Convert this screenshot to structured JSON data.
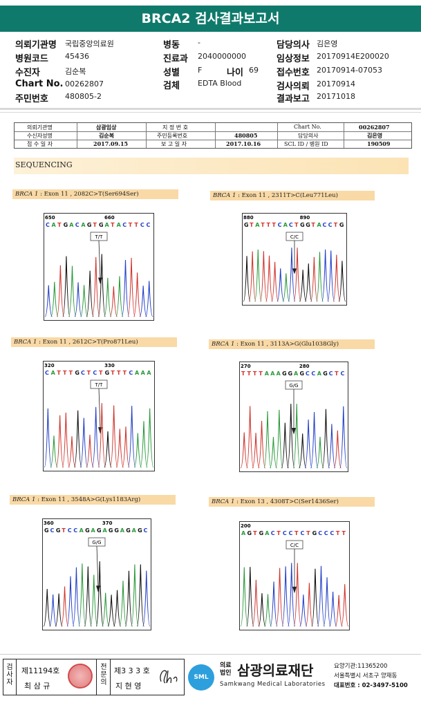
{
  "report": {
    "title": "BRCA2 검사결과보고서"
  },
  "patient": {
    "institution": {
      "label": "의뢰기관명",
      "value": "국립중앙의료원"
    },
    "hospital_code": {
      "label": "병원코드",
      "value": "45436"
    },
    "examinee": {
      "label": "수진자",
      "value": "김순복"
    },
    "chart_no": {
      "label": "Chart No.",
      "value": "00262807"
    },
    "resident_no": {
      "label": "주민번호",
      "value": "480805-2"
    },
    "ward": {
      "label": "병동",
      "value": "-"
    },
    "department": {
      "label": "진료과",
      "value": "2040000000"
    },
    "sex": {
      "label": "성별",
      "value": "F"
    },
    "age": {
      "label": "나이",
      "value": "69"
    },
    "specimen": {
      "label": "검체",
      "value": "EDTA Blood"
    },
    "doctor": {
      "label": "담당의사",
      "value": "김은영"
    },
    "clinical_info": {
      "label": "임상정보",
      "value": "20170914E200020"
    },
    "receipt_no": {
      "label": "접수번호",
      "value": "20170914-07053"
    },
    "request_date": {
      "label": "검사의뢰",
      "value": "20170914"
    },
    "report_date": {
      "label": "결과보고",
      "value": "20171018"
    }
  },
  "scan_table": {
    "row1": [
      "의뢰기관명",
      "삼광임상",
      "지 정 번 호",
      "",
      "Chart No.",
      "00262807"
    ],
    "row2": [
      "수신자성명",
      "김순복",
      "주민등록번호",
      "480805",
      "담당의사",
      "김은영"
    ],
    "row3": [
      "접 수 일 자",
      "2017.09.15",
      "보 고 일 자",
      "2017.10.16",
      "SCL ID / 병원 ID",
      "190509"
    ]
  },
  "section": {
    "label": "SEQUENCING"
  },
  "panels": [
    {
      "gene": "BRCA 1",
      "desc": " : Exon 11 , 2082C>T(Ser694Ser)",
      "bases": "CATGACAGTGATACTTCC",
      "pos1": "650",
      "pos2": "660",
      "genotype": "T/T"
    },
    {
      "gene": "BRCA 1",
      "desc": " : Exon 11 , 2311T>C(Leu771Leu)",
      "bases": "GTATTTCACTGGTACCTG",
      "pos1": "880",
      "pos2": "890",
      "genotype": "C/C"
    },
    {
      "gene": "BRCA 1",
      "desc": " : Exon 11 , 2612C>T(Pro871Leu)",
      "bases": "CATTTGCTCTGTTTCAAA",
      "pos1": "320",
      "pos2": "330",
      "genotype": "T/T"
    },
    {
      "gene": "BRCA 1",
      "desc": " : Exon 11 , 3113A>G(Glu1038Gly)",
      "bases": "TTTTAAAGGAGCCAGCTC",
      "pos1": "270",
      "pos2": "280",
      "genotype": "G/G"
    },
    {
      "gene": "BRCA 1",
      "desc": " : Exon 11 , 3548A>G(Lys1183Arg)",
      "bases": "GCGTCCAGAGAGGAGAGC",
      "pos1": "360",
      "pos2": "370",
      "genotype": "G/G"
    },
    {
      "gene": "BRCA 1",
      "desc": " : Exon 13 , 4308T>C(Ser1436Ser)",
      "bases": "AGTGACTCCTCTGCCCTT",
      "pos1": "200",
      "pos2": "",
      "genotype": "C/C"
    }
  ],
  "signature": {
    "examiner_label": "검사자",
    "examiner_license": "제11194호",
    "examiner_name": "최 삼 규",
    "confirm_label": "전문의",
    "confirm_license": "제3 3 3 호",
    "confirm_name": "지 현 영"
  },
  "org": {
    "legal": "의료법인",
    "name": "삼광의료재단",
    "name_en": "Samkwang Medical Laboratories",
    "logo": "SML",
    "care_code": "요양기관:11365200",
    "address": "서울특별시 서초구 양재동",
    "phone": "대표번호 : 02-3497-5100"
  },
  "colors": {
    "brand": "#0f7a6c",
    "A": "#2a9a3a",
    "C": "#2340c8",
    "G": "#111111",
    "T": "#d0342c"
  }
}
